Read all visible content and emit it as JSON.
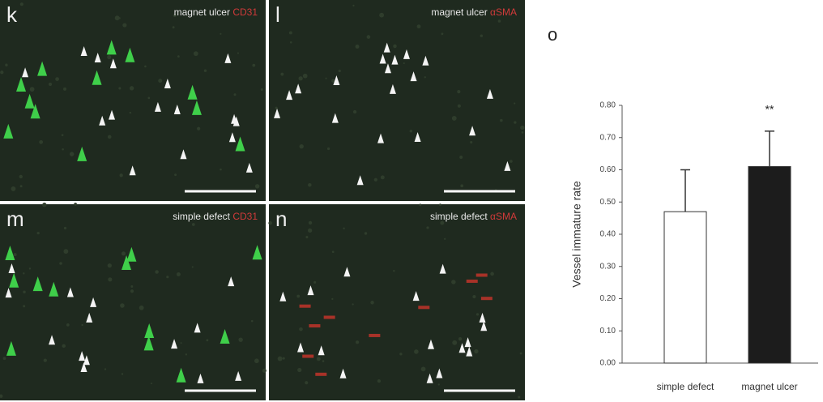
{
  "panels": [
    {
      "letter": "k",
      "caption": "magnet ulcer",
      "stain": "CD31"
    },
    {
      "letter": "l",
      "caption": "magnet ulcer",
      "stain": "αSMA"
    },
    {
      "letter": "m",
      "caption": "simple defect",
      "stain": "CD31"
    },
    {
      "letter": "n",
      "caption": "simple defect",
      "stain": "αSMA"
    }
  ],
  "chart_data": {
    "type": "bar",
    "panel_letter": "o",
    "ylabel": "Vessel immature rate",
    "categories": [
      "simple defect",
      "magnet ulcer"
    ],
    "values": [
      0.47,
      0.61
    ],
    "errors": [
      0.13,
      0.11
    ],
    "colors": [
      "#ffffff",
      "#1c1c1c"
    ],
    "annotations": [
      null,
      "**"
    ],
    "ylim": [
      0,
      0.8
    ],
    "yticks": [
      {
        "value": 0,
        "label": "0.00"
      },
      {
        "value": 0.1,
        "label": "0.10"
      },
      {
        "value": 0.2,
        "label": "0.20"
      },
      {
        "value": 0.3,
        "label": "0.30"
      },
      {
        "value": 0.4,
        "label": "0.40"
      },
      {
        "value": 0.5,
        "label": "0.50"
      },
      {
        "value": 0.6,
        "label": "0.60"
      },
      {
        "value": 0.7,
        "label": "0.70"
      },
      {
        "value": 0.8,
        "label": "0.80"
      }
    ]
  }
}
